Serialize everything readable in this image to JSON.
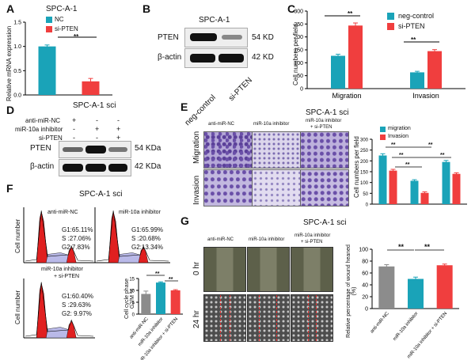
{
  "panels": {
    "A": {
      "label": "A",
      "title": "SPC-A-1",
      "legend": [
        "NC",
        "si-PTEN"
      ],
      "sig": "**",
      "ylabel": "Relative mRNA expression",
      "chart_data": {
        "type": "bar",
        "categories": [
          "NC",
          "si-PTEN"
        ],
        "values": [
          1.0,
          0.28
        ],
        "errors": [
          0.03,
          0.06
        ],
        "ylim": [
          0,
          1.5
        ],
        "yticks": [
          "0.0",
          "0.5",
          "1.0",
          "1.5"
        ],
        "colors": [
          "#1aa3b8",
          "#f03e3e"
        ]
      }
    },
    "B": {
      "label": "B",
      "title": "SPC-A-1",
      "rows": [
        {
          "name": "PTEN",
          "kd": "54 KD"
        },
        {
          "name": "β-actin",
          "kd": "42 KD"
        }
      ],
      "lanes": [
        "neg-control",
        "si-PTEN"
      ]
    },
    "C": {
      "label": "C",
      "legend": [
        "neg-control",
        "si-PTEN"
      ],
      "sig": [
        "**",
        "**"
      ],
      "ylabel": "Cell numbers per field",
      "chart_data": {
        "type": "bar",
        "categories": [
          "Migration",
          "Invasion"
        ],
        "series": [
          {
            "name": "neg-control",
            "values": [
              127,
              63
            ],
            "errors": [
              6,
              4
            ],
            "color": "#1aa3b8"
          },
          {
            "name": "si-PTEN",
            "values": [
              244,
              145
            ],
            "errors": [
              10,
              6
            ],
            "color": "#f03e3e"
          }
        ],
        "ylim": [
          0,
          300
        ],
        "yticks": [
          "0",
          "50",
          "100",
          "150",
          "200",
          "250",
          "300"
        ]
      }
    },
    "D": {
      "label": "D",
      "title": "SPC-A-1 sci",
      "conditions": [
        {
          "name": "anti-miR-NC",
          "marks": [
            "+",
            "-",
            "-"
          ]
        },
        {
          "name": "miR-10a inhibitor",
          "marks": [
            "-",
            "+",
            "+"
          ]
        },
        {
          "name": "si-PTEN",
          "marks": [
            "-",
            "-",
            "+"
          ]
        }
      ],
      "rows": [
        {
          "name": "PTEN",
          "kd": "54 KDa"
        },
        {
          "name": "β-actin",
          "kd": "42 KDa"
        }
      ]
    },
    "E": {
      "label": "E",
      "title": "SPC-A-1 sci",
      "columns": [
        "anti-miR-NC",
        "miR-10a inhibitor",
        "miR-10a inhibitor",
        "+ si-PTEN"
      ],
      "rows": [
        "Migration",
        "Invasion"
      ],
      "legend": [
        "migration",
        "Invasion"
      ],
      "sig": [
        "**",
        "**",
        "**",
        "**",
        "**"
      ],
      "ylabel": "Cell numbers per field",
      "chart_data": {
        "type": "bar",
        "categories": [
          "anti-miR-NC",
          "miR-10a inhibitor",
          "miR-10a inhibitor + si-PTEN"
        ],
        "series": [
          {
            "name": "migration",
            "values": [
              225,
              108,
              195
            ],
            "errors": [
              8,
              5,
              7
            ],
            "color": "#1aa3b8"
          },
          {
            "name": "Invasion",
            "values": [
              155,
              52,
              140
            ],
            "errors": [
              6,
              5,
              5
            ],
            "color": "#f03e3e"
          }
        ],
        "ylim": [
          0,
          300
        ],
        "yticks": [
          "0",
          "50",
          "100",
          "150",
          "200",
          "250",
          "300"
        ]
      }
    },
    "F": {
      "label": "F",
      "title": "SPC-A-1 sci",
      "histograms": [
        {
          "title": "anti-miR-NC",
          "g1": "G1:65.11%",
          "s": "S  :27.06%",
          "g2": "G2:7.83%"
        },
        {
          "title": "miR-10a inhibitor",
          "g1": "G1:65.99%",
          "s": "S  :20.68%",
          "g2": "G2:13.34%"
        },
        {
          "title": "miR-10a inhibitor",
          "title2": "+ si-PTEN",
          "g1": "G1:60.40%",
          "s": "S  :29.63%",
          "g2": "G2: 9.97%"
        }
      ],
      "hist_ylabel": "Cell number",
      "ylabel": "Cell cycle phase G2/M %",
      "sig": [
        "**",
        "**"
      ],
      "chart_data": {
        "type": "bar",
        "categories": [
          "anti-miR-NC",
          "miR-10a inhibitor",
          "miR-10a inhibitor + si-PTEN"
        ],
        "values": [
          8.5,
          13.3,
          10.0
        ],
        "errors": [
          1.2,
          0.3,
          0.3
        ],
        "ylim": [
          0,
          15
        ],
        "yticks": [
          "0",
          "5",
          "10",
          "15"
        ],
        "colors": [
          "#8c8c8c",
          "#1aa3b8",
          "#f03e3e"
        ]
      }
    },
    "G": {
      "label": "G",
      "title": "SPC-A-1 sci",
      "columns": [
        "anti-miR-NC",
        "miR-10a inhibitor",
        "miR-10a inhibitor",
        "+ si-PTEN"
      ],
      "rows": [
        "0 hr",
        "24 hr"
      ],
      "sig": [
        "**",
        "**"
      ],
      "ylabel": "Relative percentage of wound heaned (%)",
      "chart_data": {
        "type": "bar",
        "categories": [
          "anti-miR-NC",
          "miR-10a inhibitor",
          "miR-10a inhibitor + si-PTEN"
        ],
        "values": [
          71,
          50,
          73
        ],
        "errors": [
          3,
          3,
          2
        ],
        "ylim": [
          0,
          100
        ],
        "yticks": [
          "0",
          "20",
          "40",
          "60",
          "80",
          "100"
        ],
        "colors": [
          "#8c8c8c",
          "#1aa3b8",
          "#f03e3e"
        ]
      }
    }
  }
}
